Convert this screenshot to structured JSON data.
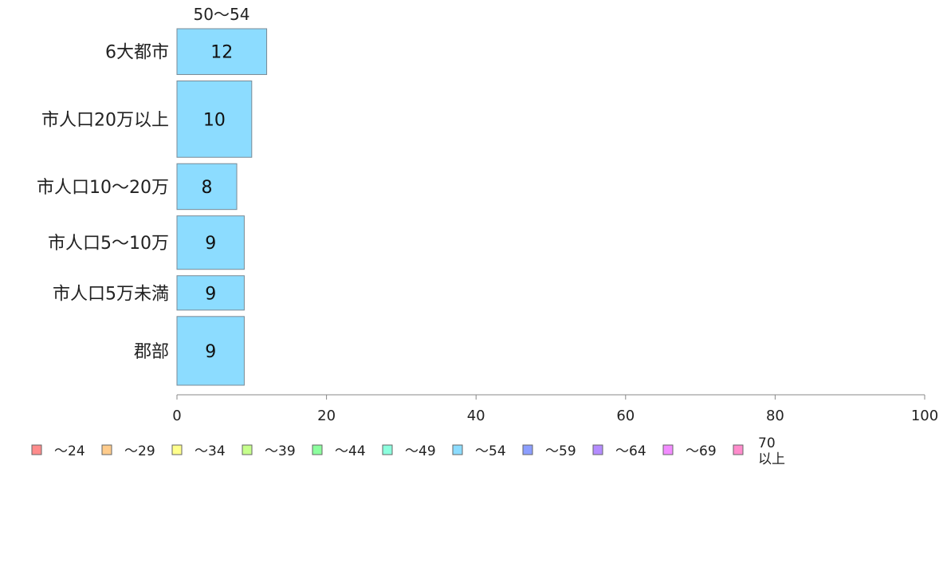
{
  "chart_data": {
    "type": "bar",
    "orientation": "horizontal",
    "stacked": true,
    "categories": [
      "6大都市",
      "市人口20万以上",
      "市人口10〜20万",
      "市人口5〜10万",
      "市人口5万未満",
      "郡部"
    ],
    "series": [
      {
        "name": "〜24",
        "color": "#ff8c8c",
        "values": [
          0,
          0,
          0,
          0,
          0,
          0
        ]
      },
      {
        "name": "〜29",
        "color": "#ffcc8c",
        "values": [
          0,
          0,
          0,
          0,
          0,
          0
        ]
      },
      {
        "name": "〜34",
        "color": "#ffff8c",
        "values": [
          0,
          0,
          0,
          0,
          0,
          0
        ]
      },
      {
        "name": "〜39",
        "color": "#c6ff8c",
        "values": [
          0,
          0,
          0,
          0,
          0,
          0
        ]
      },
      {
        "name": "〜44",
        "color": "#8cff9e",
        "values": [
          0,
          0,
          0,
          0,
          0,
          0
        ]
      },
      {
        "name": "〜49",
        "color": "#8cffde",
        "values": [
          0,
          0,
          0,
          0,
          0,
          0
        ]
      },
      {
        "name": "〜54",
        "color": "#8cdcff",
        "values": [
          12,
          10,
          8,
          9,
          9,
          9
        ]
      },
      {
        "name": "〜59",
        "color": "#8c9eff",
        "values": [
          0,
          0,
          0,
          0,
          0,
          0
        ]
      },
      {
        "name": "〜64",
        "color": "#b48cff",
        "values": [
          0,
          0,
          0,
          0,
          0,
          0
        ]
      },
      {
        "name": "〜69",
        "color": "#f28cff",
        "values": [
          0,
          0,
          0,
          0,
          0,
          0
        ]
      },
      {
        "name": "70\n以上",
        "color": "#ff8ccc",
        "values": [
          0,
          0,
          0,
          0,
          0,
          0
        ]
      }
    ],
    "bar_labels": [
      "12",
      "10",
      "8",
      "9",
      "9",
      "9"
    ],
    "row_weights": [
      12,
      20,
      12,
      14,
      9,
      18
    ],
    "top_label": "50〜54",
    "xlim": [
      0,
      100
    ],
    "xticks": [
      0,
      20,
      40,
      60,
      80,
      100
    ],
    "xlabel": "",
    "ylabel": "",
    "title": "",
    "legend_position": "bottom",
    "grid": false
  }
}
